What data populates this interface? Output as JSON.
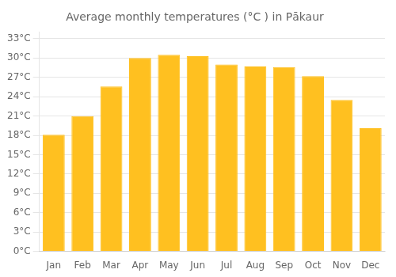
{
  "chart_data": {
    "type": "bar",
    "title": "Average monthly temperatures (°C ) in Pākaur",
    "categories": [
      "Jan",
      "Feb",
      "Mar",
      "Apr",
      "May",
      "Jun",
      "Jul",
      "Aug",
      "Sep",
      "Oct",
      "Nov",
      "Dec"
    ],
    "values": [
      18.1,
      21.0,
      25.6,
      30.0,
      30.5,
      30.3,
      29.0,
      28.7,
      28.6,
      27.2,
      23.5,
      19.1
    ],
    "color": "#FFC020",
    "ylim": [
      0,
      34
    ],
    "yticks": [
      {
        "value": 0,
        "label": "0°C"
      },
      {
        "value": 3,
        "label": "3°C"
      },
      {
        "value": 6,
        "label": "6°C"
      },
      {
        "value": 9,
        "label": "9°C"
      },
      {
        "value": 12,
        "label": "12°C"
      },
      {
        "value": 15,
        "label": "15°C"
      },
      {
        "value": 18,
        "label": "18°C"
      },
      {
        "value": 21,
        "label": "21°C"
      },
      {
        "value": 24,
        "label": "24°C"
      },
      {
        "value": 27,
        "label": "27°C"
      },
      {
        "value": 30,
        "label": "30°C"
      },
      {
        "value": 33,
        "label": "33°C"
      }
    ],
    "grid": true
  }
}
